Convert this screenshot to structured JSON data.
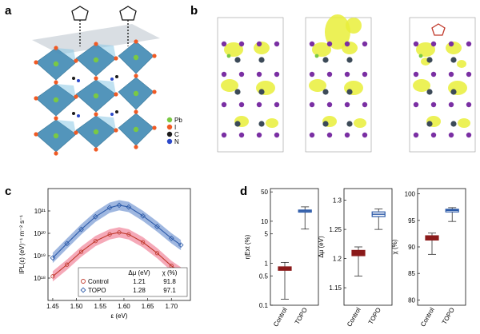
{
  "panels": {
    "a": {
      "letter": "a",
      "legend": [
        "Pb",
        "I",
        "C",
        "N"
      ],
      "legend_colors": [
        "#7ac943",
        "#f05a24",
        "#1a1a1a",
        "#2b48c9"
      ]
    },
    "b": {
      "letter": "b"
    },
    "c": {
      "letter": "c"
    },
    "d": {
      "letter": "d"
    }
  },
  "chart_data": [
    {
      "panel": "c",
      "type": "line",
      "xlabel": "ε (eV)",
      "ylabel": "IPL(ε) (eV)⁻¹ m⁻² s⁻¹",
      "xlim": [
        1.44,
        1.74
      ],
      "xticks": [
        1.45,
        1.5,
        1.55,
        1.6,
        1.65,
        1.7
      ],
      "ylog": true,
      "ylim": [
        1e+17,
        1e+22
      ],
      "yticks": [
        1e+18,
        1e+19,
        1e+20,
        1e+21
      ],
      "yticklabels": [
        "10¹⁸",
        "10¹⁹",
        "10²⁰",
        "10²¹"
      ],
      "series": [
        {
          "name": "TOPO",
          "color": "#2c5aa8",
          "band_color": "#7f9fd6",
          "x": [
            1.45,
            1.48,
            1.51,
            1.54,
            1.57,
            1.59,
            1.61,
            1.64,
            1.67,
            1.7,
            1.72
          ],
          "y": [
            8e+18,
            3.5e+19,
            1.5e+20,
            5.5e+20,
            1.4e+21,
            1.8e+21,
            1.5e+21,
            6e+20,
            2e+20,
            6e+19,
            3e+19
          ]
        },
        {
          "name": "Control",
          "color": "#c0392b",
          "band_color": "#f28ca0",
          "x": [
            1.45,
            1.48,
            1.51,
            1.54,
            1.57,
            1.59,
            1.61,
            1.64,
            1.67,
            1.7,
            1.72
          ],
          "y": [
            1.2e+18,
            4e+18,
            1.5e+19,
            4.5e+19,
            9e+19,
            1.1e+20,
            9e+19,
            4e+19,
            1.3e+19,
            3.5e+18,
            1.8e+18
          ]
        }
      ],
      "legend_table": {
        "headers": [
          "",
          "Δμ (eV)",
          "χ (%)"
        ],
        "rows": [
          [
            "Control",
            "1.21",
            "91.8"
          ],
          [
            "TOPO",
            "1.28",
            "97.1"
          ]
        ]
      }
    },
    {
      "panel": "d",
      "type": "box",
      "subplots": [
        {
          "ylabel": "ηExt (%)",
          "ylog": true,
          "ylim": [
            0.1,
            60
          ],
          "yticks": [
            0.1,
            0.5,
            1,
            5,
            10,
            50
          ],
          "yticklabels": [
            "0.1",
            "0.5",
            "1",
            "5",
            "10",
            "50"
          ],
          "categories": [
            "Control",
            "TOPO"
          ],
          "boxes": [
            {
              "min": 0.14,
              "q1": 0.68,
              "median": 0.75,
              "q3": 0.82,
              "max": 1.05
            },
            {
              "min": 6.5,
              "q1": 16.5,
              "median": 17.5,
              "q3": 18.5,
              "max": 22
            }
          ]
        },
        {
          "ylabel": "Δμ (eV)",
          "ylog": false,
          "ylim": [
            1.12,
            1.32
          ],
          "yticks": [
            1.15,
            1.2,
            1.25,
            1.3
          ],
          "yticklabels": [
            "1.15",
            "1.2",
            "1.25",
            "1.3"
          ],
          "categories": [
            "Control",
            "TOPO"
          ],
          "boxes": [
            {
              "min": 1.17,
              "q1": 1.205,
              "median": 1.21,
              "q3": 1.214,
              "max": 1.22
            },
            {
              "min": 1.25,
              "q1": 1.272,
              "median": 1.276,
              "q3": 1.28,
              "max": 1.285
            }
          ]
        },
        {
          "ylabel": "χ (%)",
          "ylog": false,
          "ylim": [
            79,
            101
          ],
          "yticks": [
            80,
            85,
            90,
            95,
            100
          ],
          "yticklabels": [
            "80",
            "85",
            "90",
            "95",
            "100"
          ],
          "categories": [
            "Control",
            "TOPO"
          ],
          "boxes": [
            {
              "min": 88.6,
              "q1": 91.3,
              "median": 91.7,
              "q3": 92.1,
              "max": 92.6
            },
            {
              "min": 94.8,
              "q1": 96.6,
              "median": 96.9,
              "q3": 97.1,
              "max": 97.4
            }
          ]
        }
      ]
    }
  ]
}
